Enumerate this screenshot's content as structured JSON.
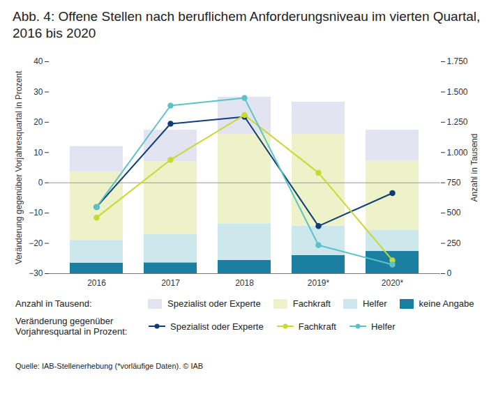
{
  "chart_data": {
    "type": "bar",
    "title": "Abb. 4: Offene Stellen nach beruflichem Anforderungsniveau im vierten Quartal, 2016 bis 2020",
    "categories": [
      "2016",
      "2017",
      "2018",
      "2019*",
      "2020*"
    ],
    "ylabel": "Veränderung gegenüber Vorjahresquartal in Prozent",
    "y2label": "Anzahl in Tausend",
    "ylim": [
      -30,
      40
    ],
    "yticks": [
      -30,
      -20,
      -10,
      0,
      10,
      20,
      30,
      40
    ],
    "y2lim": [
      0,
      1750
    ],
    "y2ticks": [
      0,
      250,
      500,
      750,
      {
        "value": 1000,
        "label": "1.000"
      },
      {
        "value": 1250,
        "label": "1.250"
      },
      {
        "value": 1500,
        "label": "1.500"
      },
      {
        "value": 1750,
        "label": "1.750"
      }
    ],
    "stacked": true,
    "bar_legend_title": "Anzahl in Tausend:",
    "line_legend_title": "Veränderung gegenüber Vorjahresquartal in Prozent:",
    "source": "Quelle: IAB-Stellenerhebung (*vorläufige Daten). © IAB",
    "series": [
      {
        "name": "Spezialist oder Experte",
        "type": "bar",
        "axis": "y2",
        "color": "#e3e4f2",
        "values": [
          210,
          260,
          308,
          266,
          255
        ]
      },
      {
        "name": "Fachkraft",
        "type": "bar",
        "axis": "y2",
        "color": "#eef2c8",
        "values": [
          565,
          600,
          737,
          756,
          570
        ]
      },
      {
        "name": "Helfer",
        "type": "bar",
        "axis": "y2",
        "color": "#cce8ec",
        "values": [
          188,
          235,
          303,
          244,
          176
        ]
      },
      {
        "name": "keine Angabe",
        "type": "bar",
        "axis": "y2",
        "color": "#1a7fa0",
        "values": [
          87,
          90,
          110,
          150,
          184
        ]
      },
      {
        "name": "Spezialist oder Experte",
        "type": "line",
        "axis": "y",
        "marker": "circle",
        "color": "#0d3d7a",
        "values": [
          -8,
          19.5,
          21.8,
          -14.3,
          -3.4
        ]
      },
      {
        "name": "Fachkraft",
        "type": "line",
        "axis": "y",
        "marker": "circle",
        "color": "#c8d932",
        "values": [
          -11.5,
          7.6,
          22.4,
          3.3,
          -25.6
        ]
      },
      {
        "name": "Helfer",
        "type": "line",
        "axis": "y",
        "marker": "circle",
        "color": "#5bc3c8",
        "values": [
          -8,
          25.5,
          28,
          -20.6,
          -27
        ]
      }
    ]
  }
}
